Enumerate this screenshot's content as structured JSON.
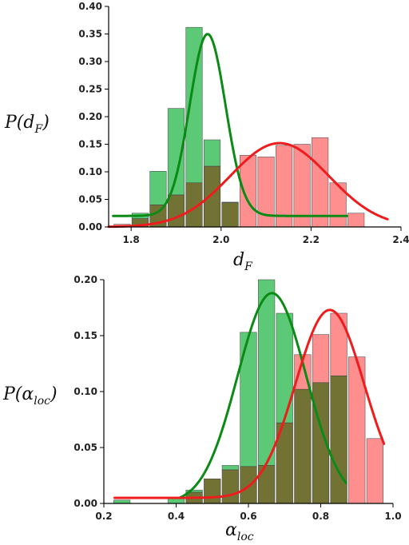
{
  "colors": {
    "green_bar": "#3fbf5f",
    "red_bar": "#ff7b7b",
    "overlap_bar": "#6b6a2a",
    "green_curve": "#0b8a16",
    "red_curve": "#ee1c1c",
    "axis": "#000000"
  },
  "chart_data": [
    {
      "type": "bar",
      "panel": "top",
      "xlabel": "d_F",
      "ylabel": "P(d_F)",
      "xlim": [
        1.75,
        2.4
      ],
      "ylim": [
        0,
        0.4
      ],
      "xticks": [
        "1.8",
        "2.0",
        "2.2",
        "2.4"
      ],
      "yticks": [
        "0.00",
        "0.05",
        "0.10",
        "0.15",
        "0.20",
        "0.25",
        "0.30",
        "0.35",
        "0.40"
      ],
      "bin_width": 0.04,
      "categories": [
        1.78,
        1.82,
        1.86,
        1.9,
        1.94,
        1.98,
        2.02,
        2.06,
        2.1,
        2.14,
        2.18,
        2.22,
        2.26,
        2.3,
        2.34
      ],
      "series": [
        {
          "values": [
            0.0,
            0.025,
            0.101,
            0.215,
            0.362,
            0.158,
            0.045,
            0.0,
            0.0,
            0.0,
            0.0,
            0.0,
            0.0,
            0.0,
            0.0
          ]
        },
        {
          "values": [
            0.005,
            0.015,
            0.04,
            0.058,
            0.08,
            0.11,
            0.044,
            0.13,
            0.127,
            0.148,
            0.15,
            0.162,
            0.08,
            0.025,
            0.0
          ]
        }
      ],
      "fits": [
        {
          "type": "gaussian",
          "color": "green",
          "x_range": [
            1.76,
            2.28
          ],
          "baseline": 0.02,
          "amplitude": 0.33,
          "center": 1.97,
          "sigma": 0.04
        },
        {
          "type": "gaussian",
          "color": "red",
          "x_range": [
            1.75,
            2.37
          ],
          "baseline": 0.0,
          "amplitude": 0.152,
          "center": 2.13,
          "sigma": 0.11
        }
      ]
    },
    {
      "type": "bar",
      "panel": "bottom",
      "xlabel": "α_loc",
      "ylabel": "P(α_loc)",
      "xlim": [
        0.2,
        1.0
      ],
      "ylim": [
        0,
        0.2
      ],
      "xticks": [
        "0.2",
        "0.4",
        "0.6",
        "0.8",
        "1.0"
      ],
      "yticks": [
        "0.00",
        "0.05",
        "0.10",
        "0.15",
        "0.20"
      ],
      "bin_width": 0.05,
      "categories": [
        0.25,
        0.3,
        0.35,
        0.4,
        0.45,
        0.5,
        0.55,
        0.6,
        0.65,
        0.7,
        0.75,
        0.8,
        0.85,
        0.9,
        0.95
      ],
      "series": [
        {
          "values": [
            0.003,
            0.0,
            0.0,
            0.005,
            0.012,
            0.022,
            0.034,
            0.153,
            0.2,
            0.17,
            0.102,
            0.108,
            0.114,
            0.0,
            0.0
          ]
        },
        {
          "values": [
            0.0,
            0.0,
            0.0,
            0.0,
            0.01,
            0.022,
            0.03,
            0.033,
            0.034,
            0.072,
            0.133,
            0.151,
            0.17,
            0.131,
            0.058
          ]
        }
      ],
      "fits": [
        {
          "type": "gaussian",
          "color": "green",
          "x_range": [
            0.41,
            0.87
          ],
          "baseline": 0.0,
          "amplitude": 0.188,
          "center": 0.665,
          "sigma": 0.095
        },
        {
          "type": "gaussian",
          "color": "red",
          "x_range": [
            0.23,
            0.975
          ],
          "baseline": 0.005,
          "amplitude": 0.168,
          "center": 0.825,
          "sigma": 0.095
        }
      ]
    }
  ]
}
